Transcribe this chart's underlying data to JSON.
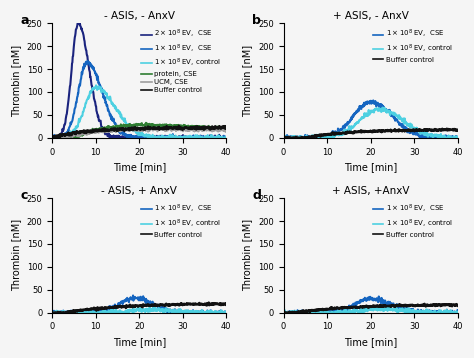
{
  "title_a": "- ASIS, - AnxV",
  "title_b": "+ ASIS, - AnxV",
  "title_c": "- ASIS, + AnxV",
  "title_d": "+ ASIS, +AnxV",
  "xlabel": "Time [min]",
  "ylabel": "Thrombin [nM]",
  "xlim": [
    0,
    40
  ],
  "ylim_a": [
    0,
    250
  ],
  "ylim_bcd": [
    0,
    250
  ],
  "yticks_a": [
    0,
    50,
    100,
    150,
    200,
    250
  ],
  "yticks_bcd": [
    0,
    50,
    100,
    150,
    200,
    250
  ],
  "colors": {
    "dark_blue": "#1a237e",
    "mid_blue": "#1565c0",
    "light_blue": "#4dd0e1",
    "green": "#2e7d32",
    "gray": "#9e9e9e",
    "black": "#111111",
    "blue_medium": "#1976d2",
    "cyan_light": "#80deea"
  },
  "bg_color": "#f5f5f5",
  "panel_labels": [
    "a",
    "b",
    "c",
    "d"
  ]
}
